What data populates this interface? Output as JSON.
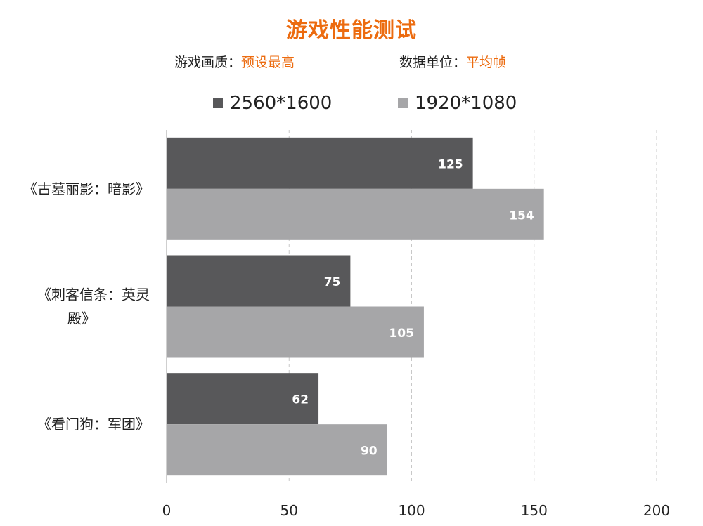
{
  "header": {
    "title": "游戏性能测试",
    "quality_label": "游戏画质：",
    "quality_value": "预设最高",
    "unit_label": "数据单位：",
    "unit_value": "平均帧"
  },
  "colors": {
    "accent": "#ec6b0f",
    "series_dark": "#58585a",
    "series_light": "#a6a6a8",
    "grid": "#c8c8c8",
    "axis": "#bfbfbf"
  },
  "chart_data": {
    "type": "bar",
    "orientation": "horizontal",
    "categories": [
      [
        "《古墓丽影：暗影》"
      ],
      [
        "《刺客信条：英灵",
        "殿》"
      ],
      [
        "《看门狗：军团》"
      ]
    ],
    "series": [
      {
        "name": "2560*1600",
        "values": [
          125,
          75,
          62
        ]
      },
      {
        "name": "1920*1080",
        "values": [
          154,
          105,
          90
        ]
      }
    ],
    "xlim": [
      0,
      200
    ],
    "xticks": [
      "0",
      "50",
      "100",
      "150",
      "200"
    ],
    "grid": "vertical dashed",
    "legend": "top",
    "data_labels": true
  }
}
